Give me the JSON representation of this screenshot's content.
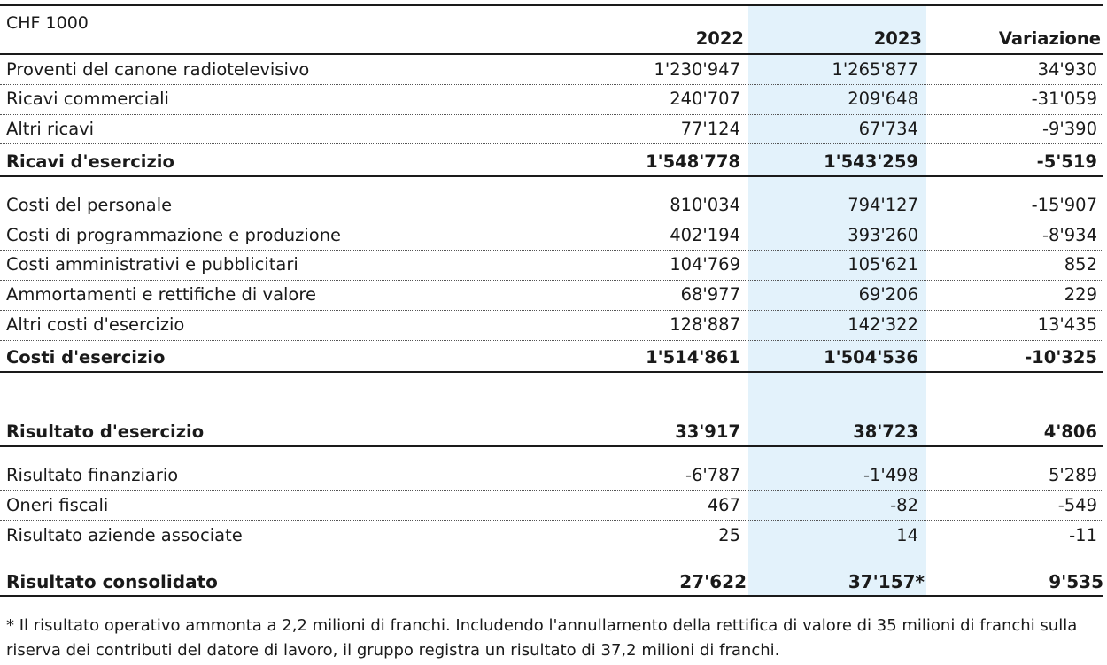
{
  "table": {
    "unit": "CHF 1000",
    "headers": {
      "y2022": "2022",
      "y2023": "2023",
      "change": "Variazione"
    },
    "revenue": [
      {
        "label": "Proventi del canone radiotelevisivo",
        "y2022": "1'230'947",
        "y2023": "1'265'877",
        "change": "34'930"
      },
      {
        "label": "Ricavi commerciali",
        "y2022": "240'707",
        "y2023": "209'648",
        "change": "-31'059"
      },
      {
        "label": "Altri ricavi",
        "y2022": "77'124",
        "y2023": "67'734",
        "change": "-9'390"
      }
    ],
    "revenue_total": {
      "label": "Ricavi d'esercizio",
      "y2022": "1'548'778",
      "y2023": "1'543'259",
      "change": "-5'519"
    },
    "costs": [
      {
        "label": "Costi del personale",
        "y2022": "810'034",
        "y2023": "794'127",
        "change": "-15'907"
      },
      {
        "label": "Costi di programmazione e produzione",
        "y2022": "402'194",
        "y2023": "393'260",
        "change": "-8'934"
      },
      {
        "label": "Costi amministrativi e pubblicitari",
        "y2022": "104'769",
        "y2023": "105'621",
        "change": "852"
      },
      {
        "label": "Ammortamenti e rettifiche di valore",
        "y2022": "68'977",
        "y2023": "69'206",
        "change": "229"
      },
      {
        "label": "Altri costi d'esercizio",
        "y2022": "128'887",
        "y2023": "142'322",
        "change": "13'435"
      }
    ],
    "costs_total": {
      "label": "Costi d'esercizio",
      "y2022": "1'514'861",
      "y2023": "1'504'536",
      "change": "-10'325"
    },
    "operating_result": {
      "label": "Risultato d'esercizio",
      "y2022": "33'917",
      "y2023": "38'723",
      "change": "4'806"
    },
    "other": [
      {
        "label": "Risultato finanziario",
        "y2022": "-6'787",
        "y2023": "-1'498",
        "change": "5'289"
      },
      {
        "label": "Oneri fiscali",
        "y2022": "467",
        "y2023": "-82",
        "change": "-549"
      },
      {
        "label": "Risultato aziende associate",
        "y2022": "25",
        "y2023": "14",
        "change": "-11"
      }
    ],
    "consolidated": {
      "label": "Risultato consolidato",
      "y2022": "27'622",
      "y2023": "37'157*",
      "change": "9'535"
    }
  },
  "footnote": "*  Il risultato operativo ammonta a 2,2 milioni di franchi. Includendo l'annullamento della rettifica di valore di 35 milioni di franchi sulla riserva dei contributi del datore di lavoro, il gruppo registra un risultato di 37,2 milioni di franchi.",
  "colors": {
    "highlight_column": "#e3f2fb",
    "rule": "#1a1a1a"
  }
}
